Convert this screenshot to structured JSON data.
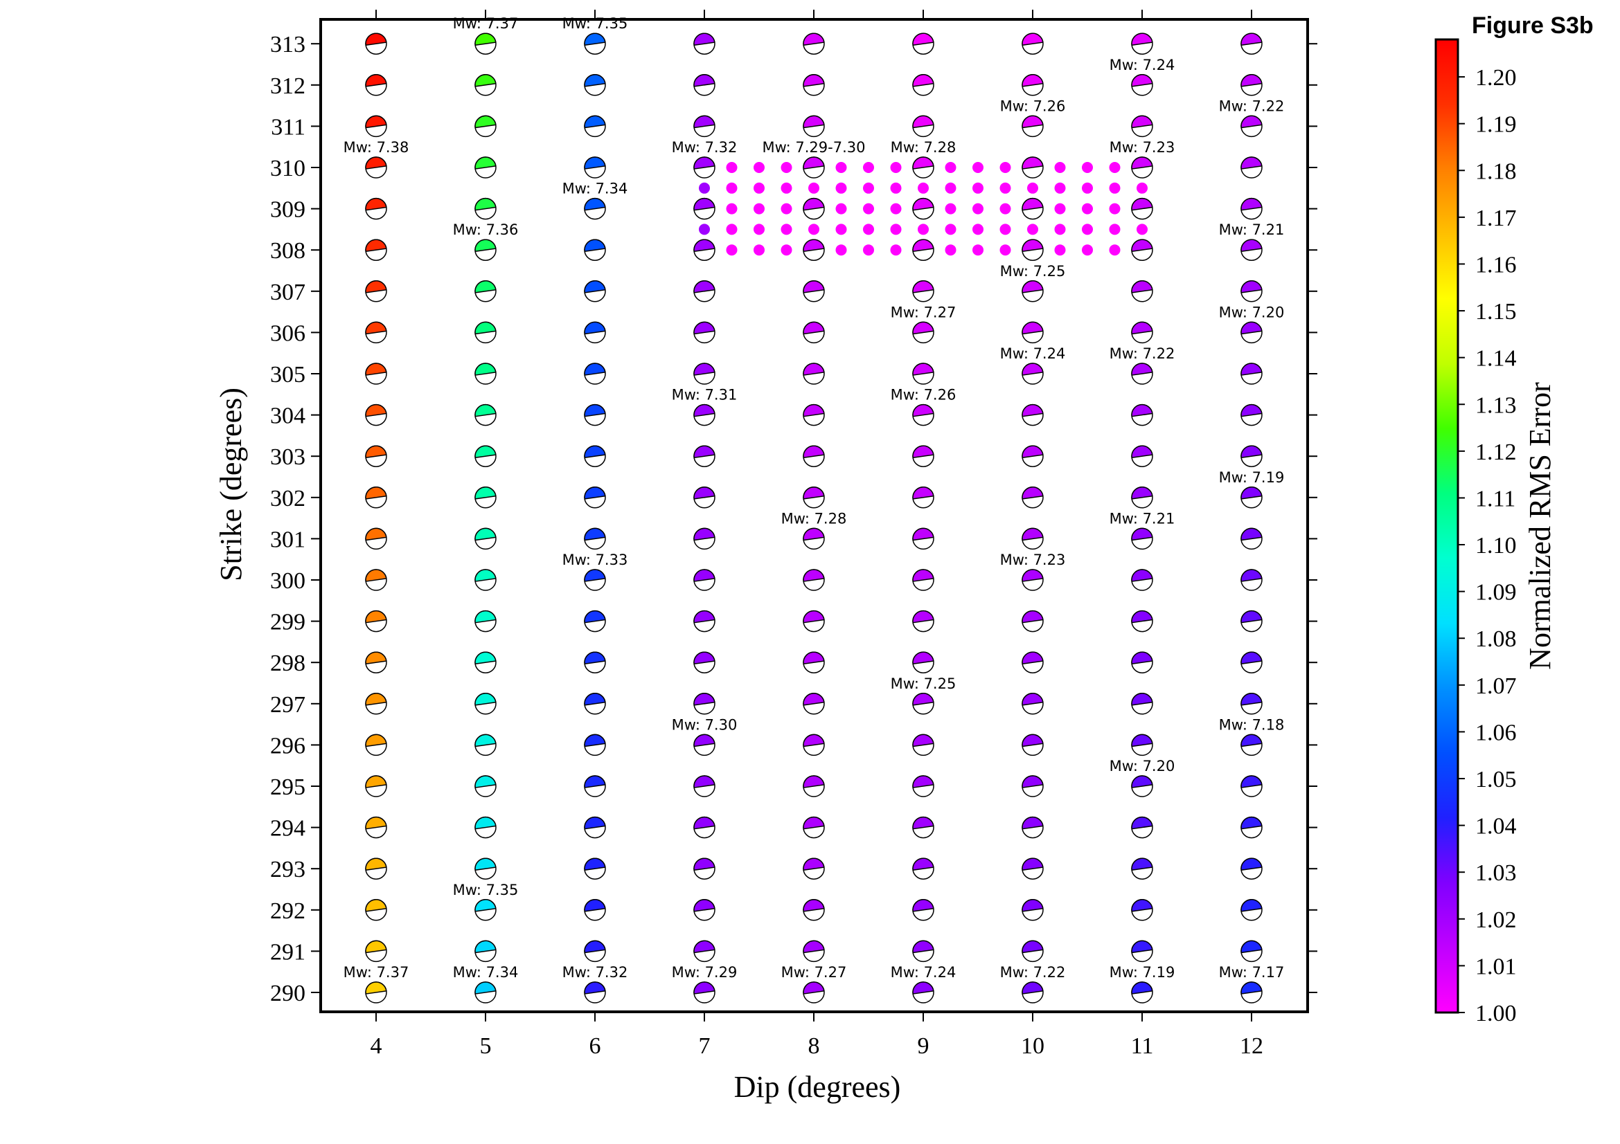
{
  "figure_label": "Figure S3b",
  "colors": {
    "scale": [
      "#ff00ff",
      "#c000ff",
      "#8000ff",
      "#2020ff",
      "#0050ff",
      "#0090ff",
      "#00e0ff",
      "#00ffd0",
      "#00ff80",
      "#40ff00",
      "#c0ff00",
      "#ffff00",
      "#ffc000",
      "#ff8000",
      "#ff3000",
      "#ff0000"
    ],
    "grid_point": "#ff00ff",
    "grid_point_edge": "#a000ff"
  },
  "chart_data": {
    "type": "scatter",
    "title": "",
    "xlabel": "Dip (degrees)",
    "ylabel": "Strike (degrees)",
    "colorbar_label": "Normalized RMS Error",
    "xlim": [
      3.5,
      12.5
    ],
    "ylim": [
      289.5,
      313.7
    ],
    "xticks": [
      4,
      5,
      6,
      7,
      8,
      9,
      10,
      11,
      12
    ],
    "yticks": [
      290,
      291,
      292,
      293,
      294,
      295,
      296,
      297,
      298,
      299,
      300,
      301,
      302,
      303,
      304,
      305,
      306,
      307,
      308,
      309,
      310,
      311,
      312,
      313
    ],
    "colorbar_ticks": [
      "1.00",
      "1.01",
      "1.02",
      "1.03",
      "1.04",
      "1.05",
      "1.06",
      "1.07",
      "1.08",
      "1.09",
      "1.10",
      "1.11",
      "1.12",
      "1.13",
      "1.14",
      "1.15",
      "1.16",
      "1.17",
      "1.18",
      "1.19",
      "1.20"
    ],
    "colorbar_range": [
      1.0,
      1.208
    ],
    "grid": false,
    "rms_by_dip": {
      "4": {
        "at290": 1.163,
        "at313": 1.205
      },
      "5": {
        "at290": 1.08,
        "at313": 1.125
      },
      "6": {
        "at290": 1.04,
        "at313": 1.06
      },
      "7": {
        "at290": 1.025,
        "at313": 1.02
      },
      "8": {
        "at290": 1.02,
        "at313": 1.008
      },
      "9": {
        "at290": 1.025,
        "at313": 1.002
      },
      "10": {
        "at290": 1.03,
        "at313": 1.003
      },
      "11": {
        "at290": 1.04,
        "at313": 1.006
      },
      "12": {
        "at290": 1.045,
        "at313": 1.012
      }
    },
    "fine_grid": {
      "dip_range": [
        7,
        11
      ],
      "dip_step": 0.25,
      "strike_range": [
        308,
        310
      ],
      "strike_step": 0.5,
      "rms": 1.0
    },
    "annotations": [
      {
        "dip": 4,
        "strike": 290,
        "label": "Mw: 7.37"
      },
      {
        "dip": 5,
        "strike": 290,
        "label": "Mw: 7.34"
      },
      {
        "dip": 6,
        "strike": 290,
        "label": "Mw: 7.32"
      },
      {
        "dip": 7,
        "strike": 290,
        "label": "Mw: 7.29"
      },
      {
        "dip": 8,
        "strike": 290,
        "label": "Mw: 7.27"
      },
      {
        "dip": 9,
        "strike": 290,
        "label": "Mw: 7.24"
      },
      {
        "dip": 10,
        "strike": 290,
        "label": "Mw: 7.22"
      },
      {
        "dip": 11,
        "strike": 290,
        "label": "Mw: 7.19"
      },
      {
        "dip": 12,
        "strike": 290,
        "label": "Mw: 7.17"
      },
      {
        "dip": 5,
        "strike": 292,
        "label": "Mw: 7.35"
      },
      {
        "dip": 11,
        "strike": 295,
        "label": "Mw: 7.20"
      },
      {
        "dip": 7,
        "strike": 296,
        "label": "Mw: 7.30"
      },
      {
        "dip": 12,
        "strike": 296,
        "label": "Mw: 7.18"
      },
      {
        "dip": 9,
        "strike": 297,
        "label": "Mw: 7.25"
      },
      {
        "dip": 6,
        "strike": 300,
        "label": "Mw: 7.33"
      },
      {
        "dip": 10,
        "strike": 300,
        "label": "Mw: 7.23"
      },
      {
        "dip": 8,
        "strike": 301,
        "label": "Mw: 7.28"
      },
      {
        "dip": 11,
        "strike": 301,
        "label": "Mw: 7.21"
      },
      {
        "dip": 12,
        "strike": 302,
        "label": "Mw: 7.19"
      },
      {
        "dip": 7,
        "strike": 304,
        "label": "Mw: 7.31"
      },
      {
        "dip": 9,
        "strike": 304,
        "label": "Mw: 7.26"
      },
      {
        "dip": 10,
        "strike": 305,
        "label": "Mw: 7.24"
      },
      {
        "dip": 11,
        "strike": 305,
        "label": "Mw: 7.22"
      },
      {
        "dip": 9,
        "strike": 306,
        "label": "Mw: 7.27"
      },
      {
        "dip": 12,
        "strike": 306,
        "label": "Mw: 7.20"
      },
      {
        "dip": 10,
        "strike": 307,
        "label": "Mw: 7.25"
      },
      {
        "dip": 5,
        "strike": 308,
        "label": "Mw: 7.36"
      },
      {
        "dip": 12,
        "strike": 308,
        "label": "Mw: 7.21"
      },
      {
        "dip": 6,
        "strike": 309,
        "label": "Mw: 7.34"
      },
      {
        "dip": 4,
        "strike": 310,
        "label": "Mw: 7.38"
      },
      {
        "dip": 7,
        "strike": 310,
        "label": "Mw: 7.32"
      },
      {
        "dip": 8,
        "strike": 310,
        "label": "Mw: 7.29-7.30"
      },
      {
        "dip": 9,
        "strike": 310,
        "label": "Mw: 7.28"
      },
      {
        "dip": 11,
        "strike": 310,
        "label": "Mw: 7.23"
      },
      {
        "dip": 10,
        "strike": 311,
        "label": "Mw: 7.26"
      },
      {
        "dip": 12,
        "strike": 311,
        "label": "Mw: 7.22"
      },
      {
        "dip": 11,
        "strike": 312,
        "label": "Mw: 7.24"
      },
      {
        "dip": 5,
        "strike": 313,
        "label": "Mw: 7.37"
      },
      {
        "dip": 6,
        "strike": 313,
        "label": "Mw: 7.35"
      }
    ]
  }
}
